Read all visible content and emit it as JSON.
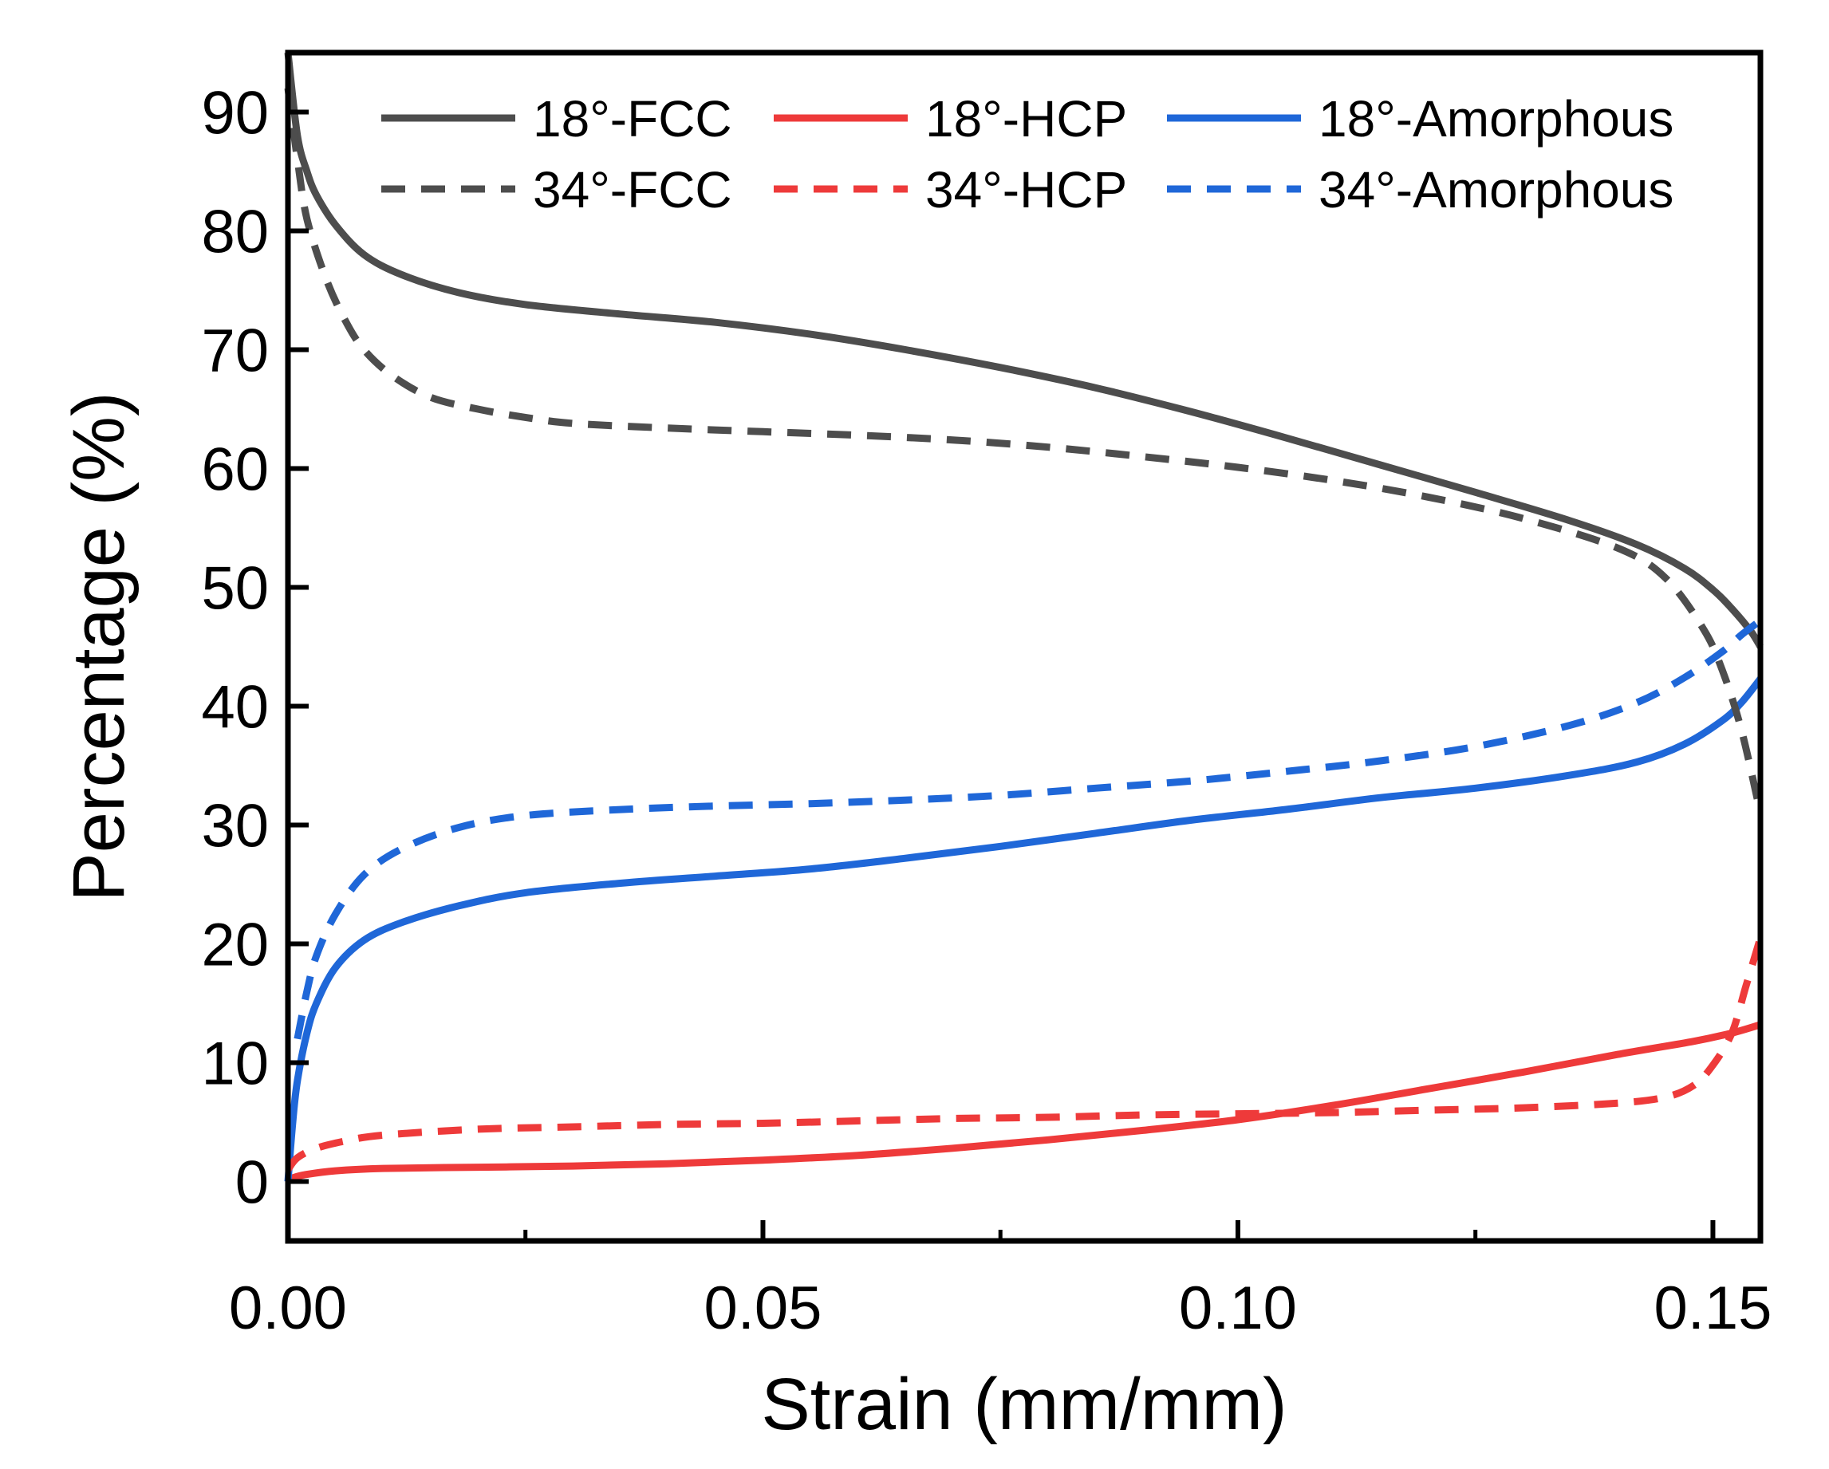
{
  "chart_data": {
    "type": "line",
    "title": "",
    "xlabel": "Strain (mm/mm)",
    "ylabel": "Percentage (%)",
    "xlim": [
      0.0,
      0.155
    ],
    "ylim": [
      -5,
      95
    ],
    "xticks": [
      0.0,
      0.05,
      0.1,
      0.15
    ],
    "xtick_labels": [
      "0.00",
      "0.05",
      "0.10",
      "0.15"
    ],
    "x_minor_ticks": [
      0.025,
      0.075,
      0.125
    ],
    "yticks": [
      0,
      10,
      20,
      30,
      40,
      50,
      60,
      70,
      80,
      90
    ],
    "ytick_labels": [
      "0",
      "10",
      "20",
      "30",
      "40",
      "50",
      "60",
      "70",
      "80",
      "90"
    ],
    "grid": false,
    "legend_position": "top",
    "series": [
      {
        "name": "18°-FCC",
        "color": "#4d4d4d",
        "dash": "solid",
        "x": [
          0.0,
          0.001,
          0.002,
          0.003,
          0.005,
          0.008,
          0.012,
          0.018,
          0.025,
          0.035,
          0.045,
          0.055,
          0.065,
          0.075,
          0.085,
          0.095,
          0.105,
          0.115,
          0.125,
          0.135,
          0.142,
          0.147,
          0.15,
          0.152,
          0.154,
          0.155
        ],
        "y": [
          95,
          88,
          85,
          83,
          80.5,
          78,
          76.3,
          74.8,
          73.8,
          73,
          72.3,
          71.3,
          70,
          68.5,
          66.8,
          64.8,
          62.6,
          60.3,
          58,
          55.6,
          53.6,
          51.6,
          49.8,
          48.2,
          46.3,
          45
        ]
      },
      {
        "name": "18°-HCP",
        "color": "#ee3a3a",
        "dash": "solid",
        "x": [
          0.0,
          0.0005,
          0.002,
          0.005,
          0.01,
          0.02,
          0.03,
          0.04,
          0.05,
          0.06,
          0.07,
          0.08,
          0.09,
          0.1,
          0.11,
          0.12,
          0.13,
          0.14,
          0.148,
          0.152,
          0.155
        ],
        "y": [
          0,
          0.3,
          0.6,
          0.9,
          1.1,
          1.2,
          1.3,
          1.5,
          1.8,
          2.2,
          2.8,
          3.5,
          4.3,
          5.2,
          6.4,
          7.8,
          9.2,
          10.7,
          11.8,
          12.5,
          13.2
        ]
      },
      {
        "name": "18°-Amorphous",
        "color": "#1f67d8",
        "dash": "solid",
        "x": [
          0.0,
          0.0005,
          0.001,
          0.002,
          0.003,
          0.005,
          0.008,
          0.012,
          0.018,
          0.025,
          0.035,
          0.045,
          0.055,
          0.065,
          0.075,
          0.085,
          0.095,
          0.105,
          0.115,
          0.125,
          0.135,
          0.142,
          0.147,
          0.151,
          0.153,
          0.155
        ],
        "y": [
          0,
          5,
          8.5,
          12.5,
          15,
          18,
          20.3,
          21.8,
          23.2,
          24.3,
          25.1,
          25.7,
          26.3,
          27.2,
          28.2,
          29.3,
          30.4,
          31.3,
          32.3,
          33.1,
          34.2,
          35.3,
          36.8,
          38.8,
          40.3,
          42.3
        ]
      },
      {
        "name": "34°-FCC",
        "color": "#4d4d4d",
        "dash": "dashed",
        "x": [
          0.0,
          0.001,
          0.002,
          0.004,
          0.006,
          0.008,
          0.011,
          0.015,
          0.02,
          0.025,
          0.03,
          0.04,
          0.05,
          0.06,
          0.07,
          0.08,
          0.09,
          0.1,
          0.11,
          0.12,
          0.13,
          0.14,
          0.145,
          0.149,
          0.151,
          0.153,
          0.155
        ],
        "y": [
          92,
          86,
          81,
          76,
          72.5,
          70,
          67.8,
          66,
          65,
          64.3,
          63.8,
          63.4,
          63.1,
          62.8,
          62.4,
          61.8,
          61,
          60.1,
          59,
          57.6,
          55.8,
          53.3,
          50.8,
          46.5,
          43,
          38,
          31
        ]
      },
      {
        "name": "34°-HCP",
        "color": "#ee3a3a",
        "dash": "dashed",
        "x": [
          0.0,
          0.001,
          0.003,
          0.006,
          0.01,
          0.02,
          0.03,
          0.04,
          0.05,
          0.06,
          0.07,
          0.08,
          0.09,
          0.1,
          0.11,
          0.12,
          0.13,
          0.14,
          0.145,
          0.148,
          0.15,
          0.152,
          0.1535,
          0.155
        ],
        "y": [
          1,
          2,
          2.8,
          3.4,
          3.9,
          4.4,
          4.6,
          4.8,
          4.9,
          5.1,
          5.3,
          5.4,
          5.6,
          5.7,
          5.8,
          6,
          6.2,
          6.6,
          7.1,
          8.1,
          9.8,
          12.5,
          16.5,
          20.5
        ]
      },
      {
        "name": "34°-Amorphous",
        "color": "#1f67d8",
        "dash": "dashed",
        "x": [
          0.001,
          0.002,
          0.003,
          0.005,
          0.008,
          0.012,
          0.018,
          0.025,
          0.035,
          0.045,
          0.055,
          0.065,
          0.075,
          0.085,
          0.095,
          0.105,
          0.115,
          0.125,
          0.135,
          0.142,
          0.147,
          0.151,
          0.153,
          0.155
        ],
        "y": [
          12,
          16,
          19,
          22.5,
          25.8,
          28,
          29.8,
          30.8,
          31.3,
          31.6,
          31.8,
          32.1,
          32.5,
          33.1,
          33.7,
          34.5,
          35.4,
          36.6,
          38.4,
          40.3,
          42.4,
          44.6,
          46,
          47.2
        ]
      }
    ]
  }
}
